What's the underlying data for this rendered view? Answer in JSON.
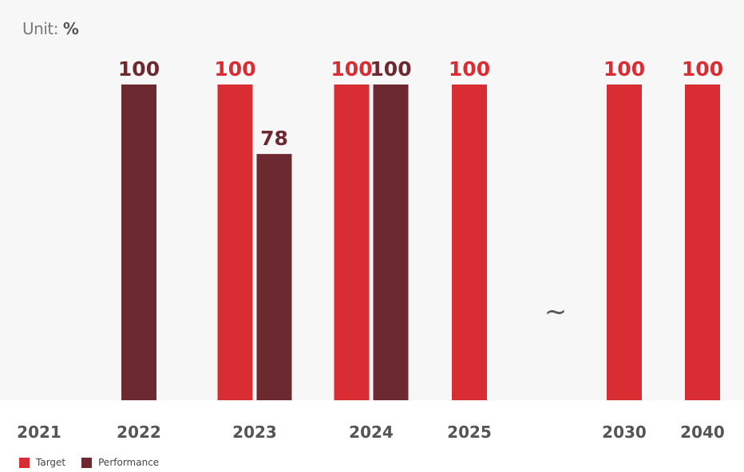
{
  "unit": {
    "prefix": "Unit:",
    "value": "%"
  },
  "break_mark": "~",
  "colors": {
    "target": "#d92d34",
    "performance": "#6d2930",
    "plot_bg": "#f7f7f7",
    "tick": "#555555"
  },
  "chart_data": {
    "type": "bar",
    "categories": [
      "2021",
      "2022",
      "2023",
      "2024",
      "2025",
      "2030",
      "2040"
    ],
    "series": [
      {
        "name": "Target",
        "values": [
          null,
          null,
          100,
          100,
          100,
          100,
          100
        ]
      },
      {
        "name": "Performance",
        "values": [
          null,
          100,
          78,
          100,
          null,
          null,
          null
        ]
      }
    ],
    "ylim": [
      0,
      100
    ],
    "xlabel": "",
    "ylabel": "",
    "legend": "bottom-left",
    "grid": false
  }
}
